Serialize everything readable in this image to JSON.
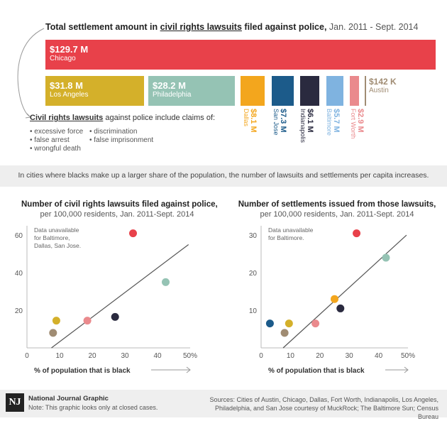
{
  "header": {
    "title_bold": "Total settlement amount in",
    "title_link": "civil rights lawsuits",
    "title_bold2": "filed against police,",
    "title_dates": "Jan. 2011 - Sept. 2014"
  },
  "settlements": [
    {
      "amount": "$129.7 M",
      "city": "Chicago",
      "value": 129.7,
      "color": "#e8414a"
    },
    {
      "amount": "$31.8 M",
      "city": "Los Angeles",
      "value": 31.8,
      "color": "#d4b02a"
    },
    {
      "amount": "$28.2 M",
      "city": "Philadelphia",
      "value": 28.2,
      "color": "#95c3b4"
    },
    {
      "amount": "$8.1 M",
      "city": "Dallas",
      "value": 8.1,
      "color": "#f3a61d"
    },
    {
      "amount": "$7.3 M",
      "city": "San Jose",
      "value": 7.3,
      "color": "#1c5b8a"
    },
    {
      "amount": "$6.1 M",
      "city": "Indianapolis",
      "value": 6.1,
      "color": "#2a2a3f"
    },
    {
      "amount": "$5.7 M",
      "city": "Baltimore",
      "value": 5.7,
      "color": "#7fb3e0"
    },
    {
      "amount": "$2.9 M",
      "city": "Fort Worth",
      "value": 2.9,
      "color": "#ea8a8d"
    },
    {
      "amount": "$142 K",
      "city": "Austin",
      "value": 0.142,
      "color": "#a08c73"
    }
  ],
  "claims_note": {
    "head_link": "Civil rights lawsuits",
    "head_rest": "against police include claims of:",
    "col1": [
      "• excessive force",
      "• false arrest",
      "• wrongful death"
    ],
    "col2": [
      "• discrimination",
      "• false imprisonment"
    ]
  },
  "band_text": "In cities where blacks make up a larger share of the population, the number of lawsuits and settlements per capita increases.",
  "chart_data": [
    {
      "type": "scatter",
      "title": "Number of civil rights lawsuits filed against police,",
      "subtitle": "per 100,000 residents, Jan. 2011-Sept. 2014",
      "xlabel": "% of population that is black",
      "x_ticks": [
        "0",
        "10",
        "20",
        "30",
        "40",
        "50%"
      ],
      "y_ticks": [
        "20",
        "40",
        "60"
      ],
      "xlim": [
        0,
        50
      ],
      "ylim": [
        0,
        65
      ],
      "annotation": [
        "Data unavailable",
        "for Baltimore,",
        "Dallas, San Jose."
      ],
      "trendline": [
        [
          7.5,
          0
        ],
        [
          49.5,
          55
        ]
      ],
      "points": [
        {
          "city": "Chicago",
          "x": 32.5,
          "y": 61,
          "color": "#e8414a"
        },
        {
          "city": "Philadelphia",
          "x": 42.5,
          "y": 35,
          "color": "#95c3b4"
        },
        {
          "city": "Indianapolis",
          "x": 27,
          "y": 16.5,
          "color": "#2a2a3f"
        },
        {
          "city": "Fort Worth",
          "x": 18.5,
          "y": 14.5,
          "color": "#ea8a8d"
        },
        {
          "city": "Los Angeles",
          "x": 9,
          "y": 14.5,
          "color": "#d4b02a"
        },
        {
          "city": "Austin",
          "x": 8,
          "y": 8,
          "color": "#a08c73"
        }
      ]
    },
    {
      "type": "scatter",
      "title": "Number of settlements issued from those lawsuits,",
      "subtitle": "per 100,000 residents, Jan. 2011-Sept. 2014",
      "xlabel": "% of population that is black",
      "x_ticks": [
        "0",
        "10",
        "20",
        "30",
        "40",
        "50%"
      ],
      "y_ticks": [
        "10",
        "20",
        "30"
      ],
      "xlim": [
        0,
        50
      ],
      "ylim": [
        0,
        32.5
      ],
      "annotation": [
        "Data unavailable",
        "for Baltimore."
      ],
      "trendline": [
        [
          7.5,
          0
        ],
        [
          49.5,
          30
        ]
      ],
      "points": [
        {
          "city": "Chicago",
          "x": 32.5,
          "y": 30.5,
          "color": "#e8414a"
        },
        {
          "city": "Philadelphia",
          "x": 42.5,
          "y": 24,
          "color": "#95c3b4"
        },
        {
          "city": "Dallas",
          "x": 25,
          "y": 13,
          "color": "#f3a61d"
        },
        {
          "city": "Indianapolis",
          "x": 27,
          "y": 10.5,
          "color": "#2a2a3f"
        },
        {
          "city": "Fort Worth",
          "x": 18.5,
          "y": 6.5,
          "color": "#ea8a8d"
        },
        {
          "city": "Los Angeles",
          "x": 9.5,
          "y": 6.5,
          "color": "#d4b02a"
        },
        {
          "city": "San Jose",
          "x": 3,
          "y": 6.5,
          "color": "#1c5b8a"
        },
        {
          "city": "Austin",
          "x": 8,
          "y": 4,
          "color": "#a08c73"
        }
      ]
    }
  ],
  "footer": {
    "logo": "NJ",
    "brand": "National Journal Graphic",
    "note": "Note: This graphic looks only at closed cases.",
    "sources": "Sources: Cities of Austin, Chicago, Dallas, Fort Worth, Indianapolis, Los Angeles, Philadelphia, and San Jose courtesy of MuckRock; The Baltimore Sun; Census Bureau"
  }
}
